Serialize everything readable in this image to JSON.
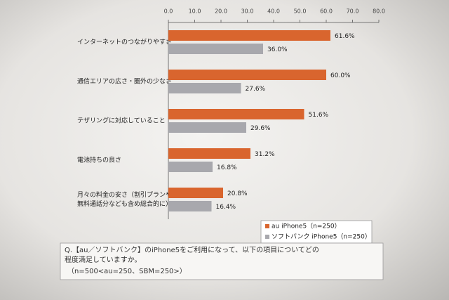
{
  "chart_data": {
    "type": "bar",
    "orientation": "horizontal",
    "categories": [
      "インターネットのつながりやすさ",
      "通信エリアの広さ・圏外の少なさ",
      "テザリングに対応していること",
      "電池持ちの良さ",
      [
        "月々の料金の安さ（割引プランや",
        "無料通話分なども含め総合的に）"
      ]
    ],
    "series": [
      {
        "name": "au iPhone5（n=250）",
        "color": "#d9652e",
        "values": [
          61.6,
          60.0,
          51.6,
          31.2,
          20.8
        ],
        "value_labels": [
          "61.6%",
          "60.0%",
          "51.6%",
          "31.2%",
          "20.8%"
        ]
      },
      {
        "name": "ソフトバンク iPhone5（n=250）",
        "color": "#a8a8ad",
        "values": [
          36.0,
          27.6,
          29.6,
          16.8,
          16.4
        ],
        "value_labels": [
          "36.0%",
          "27.6%",
          "29.6%",
          "16.8%",
          "16.4%"
        ]
      }
    ],
    "xlim": [
      0,
      80
    ],
    "xticks": [
      {
        "value": 0,
        "label": "0.0"
      },
      {
        "value": 10,
        "label": "10.0"
      },
      {
        "value": 20,
        "label": "20.0"
      },
      {
        "value": 30,
        "label": "30.0"
      },
      {
        "value": 40,
        "label": "40.0"
      },
      {
        "value": 50,
        "label": "50.0"
      },
      {
        "value": 60,
        "label": "60.0"
      },
      {
        "value": 70,
        "label": "70.0"
      },
      {
        "value": 80,
        "label": "80.0"
      }
    ],
    "legend": "bottom-right",
    "annotations": [
      "Q.【au／ソフトバンク】のiPhone5をご利用になって、以下の項目についてどの",
      "程度満足していますか。",
      "（n=500<au=250、SBM=250>）"
    ]
  }
}
